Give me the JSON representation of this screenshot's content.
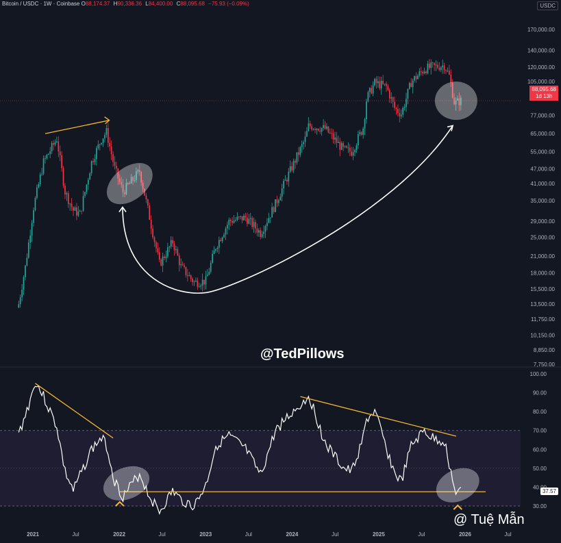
{
  "header": {
    "symbol_line": "Bitcoin / USDC · 1W · Coinbase",
    "open_label": "O",
    "open": "88,174.37",
    "high_label": "H",
    "high": "90,336.36",
    "low_label": "L",
    "low": "84,400.00",
    "close_label": "C",
    "close": "88,095.68",
    "change": "−75.93 (−0.09%)"
  },
  "currency_badge": "USDC",
  "price_badge": {
    "price": "88,095.68",
    "countdown": "1d 13h"
  },
  "rsi_badge": "37.57",
  "watermark": "@TedPillows",
  "author_tag": "@ Tuệ Mẫn",
  "colors": {
    "up": "#26a69a",
    "down": "#f23645",
    "annotation": "#f7b731",
    "curve": "#ffffff",
    "rsi": "#ffffff",
    "rsi_band": "#7e57c2"
  },
  "chart_data": [
    {
      "type": "candlestick",
      "title": "Bitcoin / USDC · 1W · Coinbase",
      "xlabel": "",
      "ylabel": "USDC",
      "scale": "log",
      "ylim": [
        7750,
        170000
      ],
      "x_ticks": [
        "2021",
        "Jul",
        "2022",
        "Jul",
        "2023",
        "Jul",
        "2024",
        "Jul",
        "2025",
        "Jul",
        "2026",
        "Jul"
      ],
      "y_ticks": [
        "170,000.00",
        "140,000.00",
        "120,000.00",
        "105,000.00",
        "77,000.00",
        "65,000.00",
        "55,000.00",
        "47,000.00",
        "41,000.00",
        "35,000.00",
        "29,000.00",
        "25,000.00",
        "21,000.00",
        "18,000.00",
        "15,500.00",
        "13,500.00",
        "11,750.00",
        "10,150.00",
        "8,850.00",
        "7,750.00"
      ],
      "y_tick_values": [
        170000,
        140000,
        120000,
        105000,
        77000,
        65000,
        55000,
        47000,
        41000,
        35000,
        29000,
        25000,
        21000,
        18000,
        15500,
        13500,
        11750,
        10150,
        8850,
        7750
      ],
      "series": [
        {
          "values": [
            [
              "2020-11-02",
              13500
            ],
            [
              "2020-11-30",
              19000
            ],
            [
              "2021-01-04",
              33000
            ],
            [
              "2021-02-15",
              50000
            ],
            [
              "2021-04-12",
              62000
            ],
            [
              "2021-05-17",
              38000
            ],
            [
              "2021-06-21",
              32000
            ],
            [
              "2021-07-19",
              31000
            ],
            [
              "2021-09-06",
              50000
            ],
            [
              "2021-10-18",
              62000
            ],
            [
              "2021-11-08",
              66000
            ],
            [
              "2021-12-13",
              47000
            ],
            [
              "2022-01-17",
              38000
            ],
            [
              "2022-03-28",
              46000
            ],
            [
              "2022-05-09",
              30000
            ],
            [
              "2022-06-20",
              19500
            ],
            [
              "2022-08-15",
              24000
            ],
            [
              "2022-09-19",
              19000
            ],
            [
              "2022-11-14",
              16500
            ],
            [
              "2023-01-02",
              16700
            ],
            [
              "2023-02-13",
              23000
            ],
            [
              "2023-04-10",
              29000
            ],
            [
              "2023-06-19",
              30000
            ],
            [
              "2023-08-21",
              26000
            ],
            [
              "2023-10-23",
              34000
            ],
            [
              "2023-12-04",
              42000
            ],
            [
              "2024-02-26",
              62000
            ],
            [
              "2024-03-11",
              70000
            ],
            [
              "2024-05-20",
              68000
            ],
            [
              "2024-08-05",
              56000
            ],
            [
              "2024-09-09",
              55000
            ],
            [
              "2024-10-28",
              69000
            ],
            [
              "2024-11-11",
              90000
            ],
            [
              "2024-12-16",
              104000
            ],
            [
              "2025-02-03",
              100000
            ],
            [
              "2025-03-10",
              82000
            ],
            [
              "2025-04-07",
              78000
            ],
            [
              "2025-05-19",
              105000
            ],
            [
              "2025-07-14",
              118000
            ],
            [
              "2025-08-11",
              120000
            ],
            [
              "2025-10-06",
              122000
            ],
            [
              "2025-10-27",
              110000
            ],
            [
              "2025-11-17",
              86000
            ],
            [
              "2025-12-15",
              88095.68
            ]
          ]
        }
      ],
      "last_price": 88095.68,
      "annotations": [
        "upward trend line over 2021 highs",
        "circled 2022 zone",
        "curved arrow from 2022 low to current zone",
        "circled current zone"
      ]
    },
    {
      "type": "line",
      "title": "",
      "xlabel": "",
      "ylabel": "",
      "ylim": [
        25,
        100
      ],
      "y_ticks": [
        "100.00",
        "90.00",
        "80.00",
        "70.00",
        "60.00",
        "50.00",
        "40.00",
        "30.00"
      ],
      "y_tick_values": [
        100,
        90,
        80,
        70,
        60,
        50,
        40,
        30
      ],
      "band": [
        30,
        70
      ],
      "series": [
        {
          "values": [
            [
              "2020-11-02",
              68
            ],
            [
              "2020-11-30",
              78
            ],
            [
              "2021-01-04",
              92
            ],
            [
              "2021-01-11",
              96
            ],
            [
              "2021-02-15",
              88
            ],
            [
              "2021-04-12",
              72
            ],
            [
              "2021-05-17",
              48
            ],
            [
              "2021-06-21",
              38
            ],
            [
              "2021-07-19",
              46
            ],
            [
              "2021-09-06",
              60
            ],
            [
              "2021-10-18",
              66
            ],
            [
              "2021-11-08",
              62
            ],
            [
              "2021-12-13",
              43
            ],
            [
              "2022-01-17",
              35
            ],
            [
              "2022-03-28",
              47
            ],
            [
              "2022-05-09",
              35
            ],
            [
              "2022-06-20",
              27
            ],
            [
              "2022-08-15",
              38
            ],
            [
              "2022-09-19",
              33
            ],
            [
              "2022-11-14",
              30
            ],
            [
              "2023-01-02",
              41
            ],
            [
              "2023-02-13",
              62
            ],
            [
              "2023-04-10",
              67
            ],
            [
              "2023-06-19",
              60
            ],
            [
              "2023-08-21",
              46
            ],
            [
              "2023-10-23",
              70
            ],
            [
              "2023-12-04",
              76
            ],
            [
              "2024-02-26",
              86
            ],
            [
              "2024-03-11",
              89
            ],
            [
              "2024-05-20",
              63
            ],
            [
              "2024-08-05",
              50
            ],
            [
              "2024-09-09",
              48
            ],
            [
              "2024-10-28",
              66
            ],
            [
              "2024-11-11",
              76
            ],
            [
              "2024-12-16",
              80
            ],
            [
              "2025-02-03",
              60
            ],
            [
              "2025-03-10",
              47
            ],
            [
              "2025-04-07",
              43
            ],
            [
              "2025-05-19",
              62
            ],
            [
              "2025-07-14",
              70
            ],
            [
              "2025-08-11",
              66
            ],
            [
              "2025-10-06",
              64
            ],
            [
              "2025-10-27",
              52
            ],
            [
              "2025-11-17",
              38
            ],
            [
              "2025-12-15",
              37.57
            ]
          ]
        }
      ],
      "horizontal_line": 37.57,
      "annotations": [
        "descending trend line 2021",
        "descending trend line 2024–2025",
        "circled 2022 zone",
        "circled current zone",
        "up-arrow markers under circles"
      ]
    }
  ]
}
